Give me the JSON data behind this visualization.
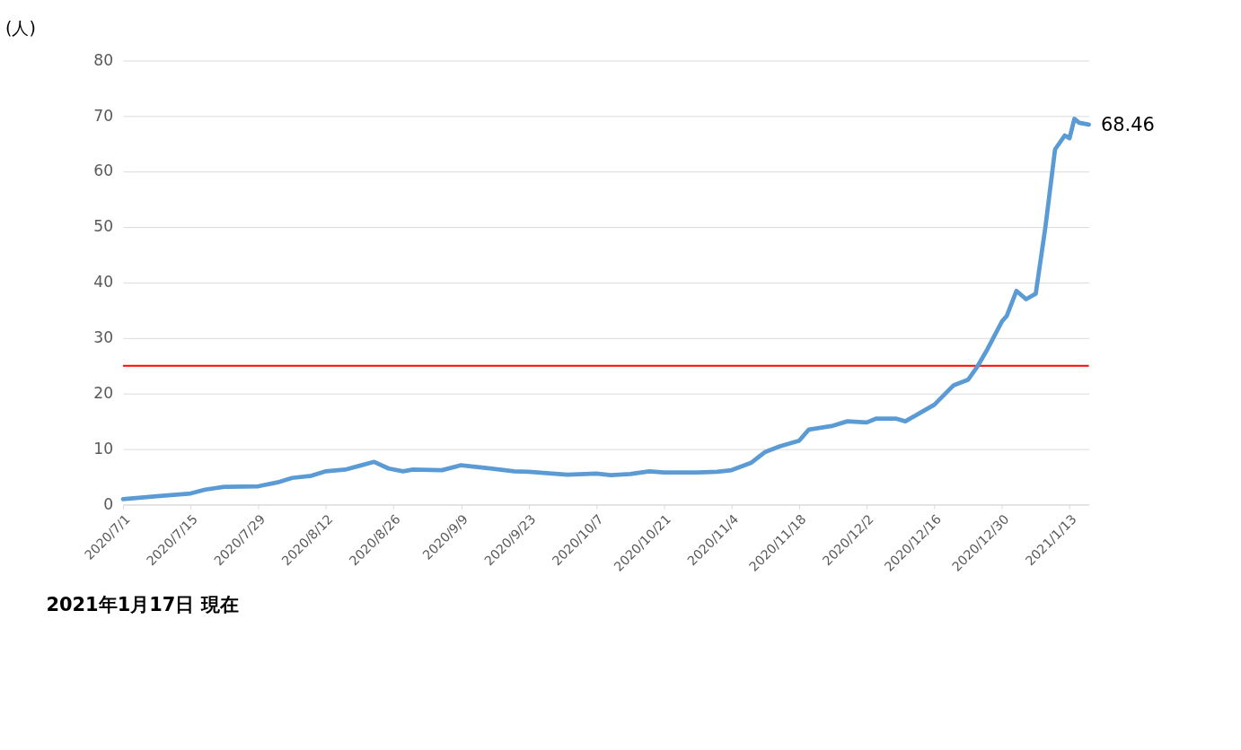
{
  "chart_data": {
    "type": "line",
    "ylabel": "(人)",
    "x": [
      "2020-07-01",
      "2020-07-08",
      "2020-07-15",
      "2020-07-18",
      "2020-07-22",
      "2020-07-29",
      "2020-08-02",
      "2020-08-05",
      "2020-08-09",
      "2020-08-12",
      "2020-08-16",
      "2020-08-19",
      "2020-08-22",
      "2020-08-25",
      "2020-08-28",
      "2020-08-30",
      "2020-09-05",
      "2020-09-09",
      "2020-09-15",
      "2020-09-20",
      "2020-09-23",
      "2020-10-01",
      "2020-10-07",
      "2020-10-10",
      "2020-10-14",
      "2020-10-18",
      "2020-10-21",
      "2020-10-28",
      "2020-11-01",
      "2020-11-04",
      "2020-11-08",
      "2020-11-11",
      "2020-11-14",
      "2020-11-18",
      "2020-11-20",
      "2020-11-25",
      "2020-11-28",
      "2020-12-02",
      "2020-12-04",
      "2020-12-08",
      "2020-12-10",
      "2020-12-13",
      "2020-12-16",
      "2020-12-20",
      "2020-12-23",
      "2020-12-25",
      "2020-12-27",
      "2020-12-30",
      "2020-12-31",
      "2021-01-02",
      "2021-01-04",
      "2021-01-06",
      "2021-01-08",
      "2021-01-10",
      "2021-01-12",
      "2021-01-13",
      "2021-01-14",
      "2021-01-15",
      "2021-01-17"
    ],
    "series": [
      {
        "color": "#5b9bd5",
        "values": [
          1.0,
          1.5,
          2.0,
          2.7,
          3.2,
          3.3,
          4.0,
          4.8,
          5.2,
          6.0,
          6.3,
          7.0,
          7.7,
          6.5,
          6.0,
          6.3,
          6.2,
          7.1,
          6.5,
          6.0,
          5.9,
          5.4,
          5.6,
          5.3,
          5.5,
          6.0,
          5.8,
          5.8,
          5.9,
          6.2,
          7.5,
          9.5,
          10.5,
          11.5,
          13.5,
          14.2,
          15.0,
          14.8,
          15.5,
          15.5,
          15.0,
          16.5,
          18.0,
          21.5,
          22.5,
          25.0,
          28.0,
          33.0,
          34.0,
          38.5,
          37.0,
          38.0,
          50.0,
          64.0,
          66.5,
          66.0,
          69.5,
          68.8,
          68.46
        ]
      }
    ],
    "xlim": [
      "2020-07-01",
      "2021-01-17"
    ],
    "xticks": [
      {
        "value": "2020-07-01",
        "label": "2020/7/1"
      },
      {
        "value": "2020-07-15",
        "label": "2020/7/15"
      },
      {
        "value": "2020-07-29",
        "label": "2020/7/29"
      },
      {
        "value": "2020-08-12",
        "label": "2020/8/12"
      },
      {
        "value": "2020-08-26",
        "label": "2020/8/26"
      },
      {
        "value": "2020-09-09",
        "label": "2020/9/9"
      },
      {
        "value": "2020-09-23",
        "label": "2020/9/23"
      },
      {
        "value": "2020-10-07",
        "label": "2020/10/7"
      },
      {
        "value": "2020-10-21",
        "label": "2020/10/21"
      },
      {
        "value": "2020-11-04",
        "label": "2020/11/4"
      },
      {
        "value": "2020-11-18",
        "label": "2020/11/18"
      },
      {
        "value": "2020-12-02",
        "label": "2020/12/2"
      },
      {
        "value": "2020-12-16",
        "label": "2020/12/16"
      },
      {
        "value": "2020-12-30",
        "label": "2020/12/30"
      },
      {
        "value": "2021-01-13",
        "label": "2021/1/13"
      }
    ],
    "ylim": [
      0,
      80
    ],
    "yticks": [
      0,
      10,
      20,
      30,
      40,
      50,
      60,
      70,
      80
    ],
    "ref_lines": [
      {
        "axis": "y",
        "value": 25,
        "color": "#ff0000"
      }
    ],
    "annotations": [
      {
        "text": "68.46",
        "x": "2021-01-17",
        "y": 68.46
      },
      "2021年1月17日 現在"
    ],
    "grid": "y",
    "marker": "none",
    "line_style": "solid"
  }
}
